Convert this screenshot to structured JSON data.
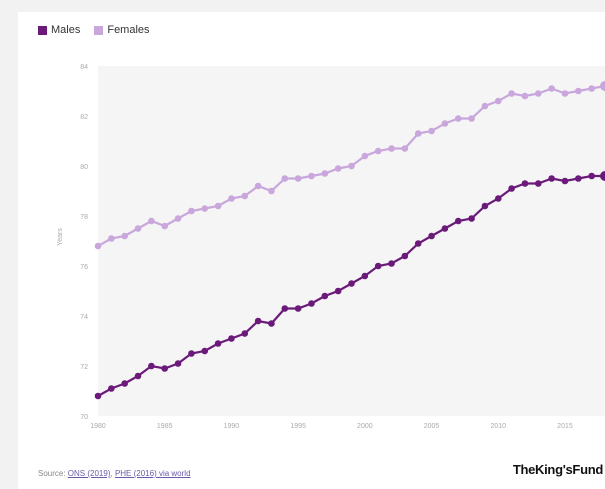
{
  "legend": {
    "males_label": "Males",
    "females_label": "Females"
  },
  "source": {
    "prefix": "Source: ",
    "link1": "ONS (2019)",
    "sep": ", ",
    "link2": "PHE (2016) via world"
  },
  "brand": "TheKing'sFund",
  "colors": {
    "males": "#6b1a7a",
    "females": "#c9a6dc",
    "plot_bg": "#f5f5f5"
  },
  "chart_data": {
    "type": "line",
    "ylabel": "Years",
    "xlim": [
      1980,
      2018
    ],
    "ylim": [
      70,
      84
    ],
    "x_ticks": [
      1980,
      1985,
      1990,
      1995,
      2000,
      2005,
      2010,
      2015
    ],
    "y_ticks": [
      70,
      72,
      74,
      76,
      78,
      80,
      82,
      84
    ],
    "grid": false,
    "legend": "top-left",
    "x": [
      1980,
      1981,
      1982,
      1983,
      1984,
      1985,
      1986,
      1987,
      1988,
      1989,
      1990,
      1991,
      1992,
      1993,
      1994,
      1995,
      1996,
      1997,
      1998,
      1999,
      2000,
      2001,
      2002,
      2003,
      2004,
      2005,
      2006,
      2007,
      2008,
      2009,
      2010,
      2011,
      2012,
      2013,
      2014,
      2015,
      2016,
      2017,
      2018
    ],
    "series": [
      {
        "name": "Males",
        "values": [
          70.8,
          71.1,
          71.3,
          71.6,
          72.0,
          71.9,
          72.1,
          72.5,
          72.6,
          72.9,
          73.1,
          73.3,
          73.8,
          73.7,
          74.3,
          74.3,
          74.5,
          74.8,
          75.0,
          75.3,
          75.6,
          76.0,
          76.1,
          76.4,
          76.9,
          77.2,
          77.5,
          77.8,
          77.9,
          78.4,
          78.7,
          79.1,
          79.3,
          79.3,
          79.5,
          79.4,
          79.5,
          79.6,
          79.6
        ]
      },
      {
        "name": "Females",
        "values": [
          76.8,
          77.1,
          77.2,
          77.5,
          77.8,
          77.6,
          77.9,
          78.2,
          78.3,
          78.4,
          78.7,
          78.8,
          79.2,
          79.0,
          79.5,
          79.5,
          79.6,
          79.7,
          79.9,
          80.0,
          80.4,
          80.6,
          80.7,
          80.7,
          81.3,
          81.4,
          81.7,
          81.9,
          81.9,
          82.4,
          82.6,
          82.9,
          82.8,
          82.9,
          83.1,
          82.9,
          83.0,
          83.1,
          83.2
        ]
      }
    ]
  }
}
